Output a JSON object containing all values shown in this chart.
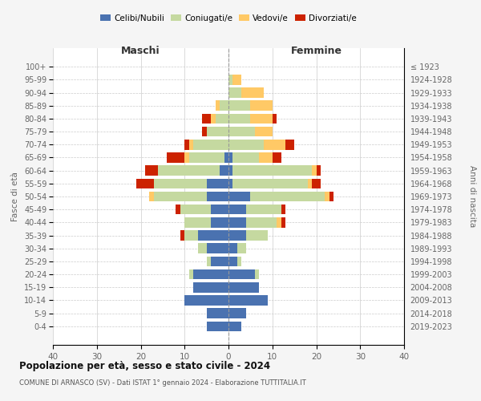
{
  "age_groups": [
    "0-4",
    "5-9",
    "10-14",
    "15-19",
    "20-24",
    "25-29",
    "30-34",
    "35-39",
    "40-44",
    "45-49",
    "50-54",
    "55-59",
    "60-64",
    "65-69",
    "70-74",
    "75-79",
    "80-84",
    "85-89",
    "90-94",
    "95-99",
    "100+"
  ],
  "birth_years": [
    "2019-2023",
    "2014-2018",
    "2009-2013",
    "2004-2008",
    "1999-2003",
    "1994-1998",
    "1989-1993",
    "1984-1988",
    "1979-1983",
    "1974-1978",
    "1969-1973",
    "1964-1968",
    "1959-1963",
    "1954-1958",
    "1949-1953",
    "1944-1948",
    "1939-1943",
    "1934-1938",
    "1929-1933",
    "1924-1928",
    "≤ 1923"
  ],
  "colors": {
    "celibi": "#4a72b0",
    "coniugati": "#c5d9a0",
    "vedovi": "#ffc966",
    "divorziati": "#cc2200"
  },
  "males": {
    "celibi": [
      5,
      5,
      10,
      8,
      8,
      4,
      5,
      7,
      4,
      4,
      5,
      5,
      2,
      1,
      0,
      0,
      0,
      0,
      0,
      0,
      0
    ],
    "coniugati": [
      0,
      0,
      0,
      0,
      1,
      1,
      2,
      3,
      6,
      7,
      12,
      12,
      14,
      8,
      8,
      5,
      3,
      2,
      0,
      0,
      0
    ],
    "vedovi": [
      0,
      0,
      0,
      0,
      0,
      0,
      0,
      0,
      0,
      0,
      1,
      0,
      0,
      1,
      1,
      0,
      1,
      1,
      0,
      0,
      0
    ],
    "divorziati": [
      0,
      0,
      0,
      0,
      0,
      0,
      0,
      1,
      0,
      1,
      0,
      4,
      3,
      4,
      1,
      1,
      2,
      0,
      0,
      0,
      0
    ]
  },
  "females": {
    "nubili": [
      3,
      4,
      9,
      7,
      6,
      2,
      2,
      4,
      4,
      4,
      5,
      1,
      1,
      1,
      0,
      0,
      0,
      0,
      0,
      0,
      0
    ],
    "coniugate": [
      0,
      0,
      0,
      0,
      1,
      1,
      2,
      5,
      7,
      8,
      17,
      17,
      18,
      6,
      8,
      6,
      5,
      5,
      3,
      1,
      0
    ],
    "vedove": [
      0,
      0,
      0,
      0,
      0,
      0,
      0,
      0,
      1,
      0,
      1,
      1,
      1,
      3,
      5,
      4,
      5,
      5,
      5,
      2,
      0
    ],
    "divorziate": [
      0,
      0,
      0,
      0,
      0,
      0,
      0,
      0,
      1,
      1,
      1,
      2,
      1,
      2,
      2,
      0,
      1,
      0,
      0,
      0,
      0
    ]
  },
  "xlim": [
    -40,
    40
  ],
  "xticks": [
    -40,
    -30,
    -20,
    -10,
    0,
    10,
    20,
    30,
    40
  ],
  "xtick_labels": [
    "40",
    "30",
    "20",
    "10",
    "0",
    "10",
    "20",
    "30",
    "40"
  ],
  "title": "Popolazione per età, sesso e stato civile - 2024",
  "subtitle": "COMUNE DI ARNASCO (SV) - Dati ISTAT 1° gennaio 2024 - Elaborazione TUTTITALIA.IT",
  "ylabel_left": "Fasce di età",
  "ylabel_right": "Anni di nascita",
  "label_maschi": "Maschi",
  "label_femmine": "Femmine",
  "legend_labels": [
    "Celibi/Nubili",
    "Coniugati/e",
    "Vedovi/e",
    "Divorziati/e"
  ],
  "bg_color": "#f5f5f5",
  "plot_bg": "#ffffff"
}
